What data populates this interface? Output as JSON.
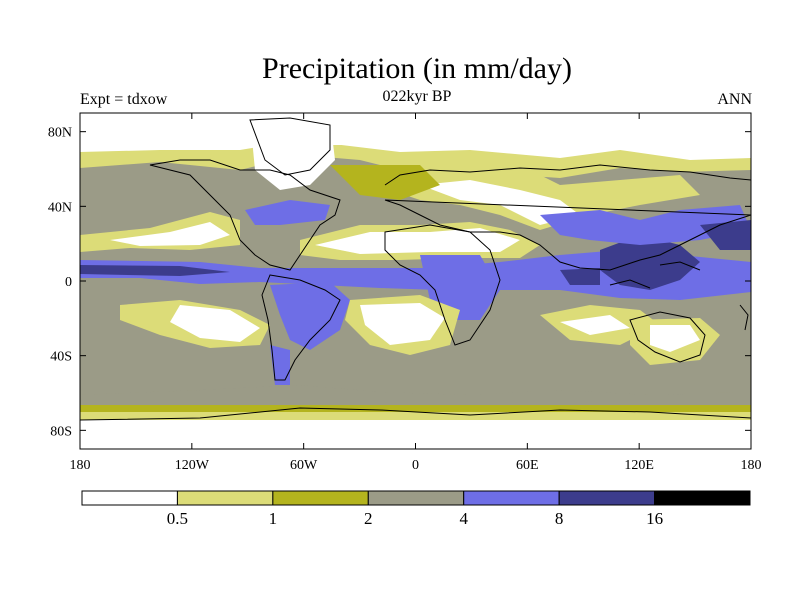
{
  "title": "Precipitation (in mm/day)",
  "left_label": "Expt = tdxow",
  "center_label": "022kyr BP",
  "right_label": "ANN",
  "chart_data": {
    "type": "heatmap",
    "title": "Precipitation (in mm/day)",
    "xlim": [
      -180,
      180
    ],
    "ylim": [
      -90,
      90
    ],
    "lon_ticks": [
      {
        "value": -180,
        "label": "180"
      },
      {
        "value": -120,
        "label": "120W"
      },
      {
        "value": -60,
        "label": "60W"
      },
      {
        "value": 0,
        "label": "0"
      },
      {
        "value": 60,
        "label": "60E"
      },
      {
        "value": 120,
        "label": "120E"
      },
      {
        "value": 180,
        "label": "180"
      }
    ],
    "lat_ticks": [
      {
        "value": 80,
        "label": "80N"
      },
      {
        "value": 40,
        "label": "40N"
      },
      {
        "value": 0,
        "label": "0"
      },
      {
        "value": -40,
        "label": "40S"
      },
      {
        "value": -80,
        "label": "80S"
      }
    ],
    "colorbar": {
      "boundaries": [
        "0.5",
        "1",
        "2",
        "4",
        "8",
        "16"
      ],
      "colors": [
        "#ffffff",
        "#dcdc78",
        "#b4b41e",
        "#9b9b87",
        "#6e6ee6",
        "#3c3c8c",
        "#000000"
      ]
    }
  }
}
